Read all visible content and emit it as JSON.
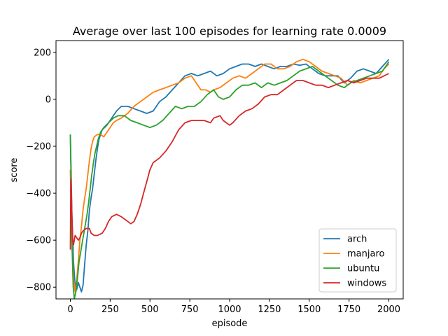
{
  "chart_data": {
    "type": "line",
    "title": "Average over last 100 episodes for learning rate 0.0009",
    "xlabel": "episode",
    "ylabel": "score",
    "xlim": [
      -90,
      2090
    ],
    "ylim": [
      -850,
      250
    ],
    "xticks": [
      0,
      250,
      500,
      750,
      1000,
      1250,
      1500,
      1750,
      2000
    ],
    "yticks": [
      -800,
      -600,
      -400,
      -200,
      0,
      200
    ],
    "grid": false,
    "legend_position": "lower-right",
    "series": [
      {
        "name": "arch",
        "color": "#1f77b4",
        "points": [
          [
            0,
            -150
          ],
          [
            5,
            -310
          ],
          [
            10,
            -500
          ],
          [
            20,
            -690
          ],
          [
            30,
            -790
          ],
          [
            40,
            -810
          ],
          [
            50,
            -780
          ],
          [
            60,
            -800
          ],
          [
            70,
            -820
          ],
          [
            80,
            -790
          ],
          [
            90,
            -700
          ],
          [
            100,
            -620
          ],
          [
            110,
            -560
          ],
          [
            120,
            -470
          ],
          [
            130,
            -420
          ],
          [
            140,
            -380
          ],
          [
            150,
            -320
          ],
          [
            160,
            -260
          ],
          [
            170,
            -210
          ],
          [
            180,
            -170
          ],
          [
            200,
            -130
          ],
          [
            230,
            -110
          ],
          [
            260,
            -80
          ],
          [
            290,
            -50
          ],
          [
            320,
            -30
          ],
          [
            360,
            -30
          ],
          [
            400,
            -40
          ],
          [
            440,
            -50
          ],
          [
            480,
            -60
          ],
          [
            520,
            -50
          ],
          [
            560,
            -10
          ],
          [
            600,
            10
          ],
          [
            640,
            40
          ],
          [
            680,
            70
          ],
          [
            720,
            100
          ],
          [
            760,
            110
          ],
          [
            800,
            100
          ],
          [
            840,
            110
          ],
          [
            880,
            120
          ],
          [
            920,
            100
          ],
          [
            960,
            110
          ],
          [
            1000,
            130
          ],
          [
            1040,
            140
          ],
          [
            1080,
            150
          ],
          [
            1120,
            150
          ],
          [
            1160,
            140
          ],
          [
            1200,
            150
          ],
          [
            1240,
            140
          ],
          [
            1280,
            130
          ],
          [
            1320,
            140
          ],
          [
            1360,
            140
          ],
          [
            1400,
            150
          ],
          [
            1440,
            145
          ],
          [
            1480,
            150
          ],
          [
            1520,
            130
          ],
          [
            1560,
            110
          ],
          [
            1600,
            100
          ],
          [
            1640,
            100
          ],
          [
            1680,
            100
          ],
          [
            1720,
            70
          ],
          [
            1760,
            90
          ],
          [
            1800,
            120
          ],
          [
            1840,
            130
          ],
          [
            1880,
            120
          ],
          [
            1920,
            110
          ],
          [
            1960,
            140
          ],
          [
            2000,
            170
          ]
        ]
      },
      {
        "name": "manjaro",
        "color": "#ff7f0e",
        "points": [
          [
            0,
            -300
          ],
          [
            5,
            -470
          ],
          [
            10,
            -620
          ],
          [
            20,
            -760
          ],
          [
            30,
            -820
          ],
          [
            40,
            -770
          ],
          [
            50,
            -690
          ],
          [
            60,
            -600
          ],
          [
            70,
            -540
          ],
          [
            80,
            -470
          ],
          [
            90,
            -420
          ],
          [
            100,
            -380
          ],
          [
            110,
            -320
          ],
          [
            120,
            -260
          ],
          [
            130,
            -210
          ],
          [
            140,
            -180
          ],
          [
            150,
            -160
          ],
          [
            170,
            -150
          ],
          [
            190,
            -150
          ],
          [
            210,
            -160
          ],
          [
            230,
            -140
          ],
          [
            250,
            -120
          ],
          [
            270,
            -100
          ],
          [
            290,
            -90
          ],
          [
            320,
            -80
          ],
          [
            360,
            -60
          ],
          [
            400,
            -30
          ],
          [
            440,
            -10
          ],
          [
            480,
            10
          ],
          [
            520,
            30
          ],
          [
            560,
            40
          ],
          [
            600,
            50
          ],
          [
            640,
            60
          ],
          [
            680,
            70
          ],
          [
            720,
            90
          ],
          [
            760,
            100
          ],
          [
            790,
            70
          ],
          [
            820,
            40
          ],
          [
            850,
            40
          ],
          [
            880,
            30
          ],
          [
            900,
            40
          ],
          [
            940,
            50
          ],
          [
            980,
            70
          ],
          [
            1020,
            90
          ],
          [
            1060,
            100
          ],
          [
            1100,
            90
          ],
          [
            1140,
            110
          ],
          [
            1180,
            130
          ],
          [
            1220,
            150
          ],
          [
            1260,
            150
          ],
          [
            1300,
            130
          ],
          [
            1340,
            130
          ],
          [
            1380,
            140
          ],
          [
            1420,
            160
          ],
          [
            1460,
            170
          ],
          [
            1500,
            160
          ],
          [
            1540,
            140
          ],
          [
            1580,
            120
          ],
          [
            1620,
            110
          ],
          [
            1660,
            100
          ],
          [
            1700,
            90
          ],
          [
            1740,
            60
          ],
          [
            1780,
            80
          ],
          [
            1820,
            70
          ],
          [
            1860,
            80
          ],
          [
            1900,
            90
          ],
          [
            1940,
            100
          ],
          [
            1970,
            130
          ],
          [
            2000,
            150
          ]
        ]
      },
      {
        "name": "ubuntu",
        "color": "#2ca02c",
        "points": [
          [
            0,
            -150
          ],
          [
            5,
            -360
          ],
          [
            10,
            -610
          ],
          [
            18,
            -800
          ],
          [
            25,
            -850
          ],
          [
            35,
            -820
          ],
          [
            45,
            -760
          ],
          [
            55,
            -690
          ],
          [
            65,
            -650
          ],
          [
            75,
            -610
          ],
          [
            85,
            -570
          ],
          [
            95,
            -530
          ],
          [
            105,
            -490
          ],
          [
            115,
            -440
          ],
          [
            125,
            -380
          ],
          [
            135,
            -320
          ],
          [
            145,
            -270
          ],
          [
            155,
            -230
          ],
          [
            165,
            -200
          ],
          [
            175,
            -170
          ],
          [
            190,
            -140
          ],
          [
            210,
            -120
          ],
          [
            240,
            -100
          ],
          [
            270,
            -80
          ],
          [
            300,
            -70
          ],
          [
            340,
            -70
          ],
          [
            380,
            -90
          ],
          [
            420,
            -100
          ],
          [
            460,
            -110
          ],
          [
            500,
            -120
          ],
          [
            540,
            -110
          ],
          [
            580,
            -90
          ],
          [
            620,
            -60
          ],
          [
            660,
            -30
          ],
          [
            700,
            -40
          ],
          [
            740,
            -30
          ],
          [
            780,
            -30
          ],
          [
            820,
            -10
          ],
          [
            860,
            20
          ],
          [
            900,
            40
          ],
          [
            930,
            10
          ],
          [
            960,
            0
          ],
          [
            1000,
            10
          ],
          [
            1040,
            40
          ],
          [
            1080,
            60
          ],
          [
            1120,
            60
          ],
          [
            1160,
            70
          ],
          [
            1200,
            50
          ],
          [
            1240,
            70
          ],
          [
            1280,
            60
          ],
          [
            1320,
            70
          ],
          [
            1360,
            80
          ],
          [
            1400,
            100
          ],
          [
            1440,
            120
          ],
          [
            1480,
            130
          ],
          [
            1520,
            140
          ],
          [
            1560,
            120
          ],
          [
            1600,
            100
          ],
          [
            1640,
            80
          ],
          [
            1680,
            60
          ],
          [
            1720,
            50
          ],
          [
            1760,
            70
          ],
          [
            1800,
            80
          ],
          [
            1840,
            90
          ],
          [
            1880,
            100
          ],
          [
            1920,
            110
          ],
          [
            1960,
            120
          ],
          [
            2000,
            160
          ]
        ]
      },
      {
        "name": "windows",
        "color": "#d62728",
        "points": [
          [
            0,
            -640
          ],
          [
            3,
            -340
          ],
          [
            6,
            -380
          ],
          [
            10,
            -500
          ],
          [
            15,
            -600
          ],
          [
            20,
            -620
          ],
          [
            30,
            -580
          ],
          [
            40,
            -590
          ],
          [
            50,
            -600
          ],
          [
            60,
            -590
          ],
          [
            70,
            -570
          ],
          [
            80,
            -560
          ],
          [
            100,
            -550
          ],
          [
            120,
            -550
          ],
          [
            130,
            -570
          ],
          [
            150,
            -580
          ],
          [
            170,
            -580
          ],
          [
            200,
            -570
          ],
          [
            220,
            -550
          ],
          [
            240,
            -520
          ],
          [
            260,
            -500
          ],
          [
            290,
            -490
          ],
          [
            320,
            -500
          ],
          [
            340,
            -510
          ],
          [
            360,
            -520
          ],
          [
            380,
            -530
          ],
          [
            400,
            -520
          ],
          [
            420,
            -490
          ],
          [
            440,
            -450
          ],
          [
            460,
            -400
          ],
          [
            480,
            -350
          ],
          [
            500,
            -300
          ],
          [
            520,
            -270
          ],
          [
            560,
            -250
          ],
          [
            600,
            -220
          ],
          [
            640,
            -180
          ],
          [
            680,
            -130
          ],
          [
            720,
            -100
          ],
          [
            760,
            -90
          ],
          [
            800,
            -90
          ],
          [
            840,
            -90
          ],
          [
            880,
            -100
          ],
          [
            900,
            -80
          ],
          [
            940,
            -70
          ],
          [
            960,
            -90
          ],
          [
            1000,
            -110
          ],
          [
            1020,
            -100
          ],
          [
            1060,
            -70
          ],
          [
            1100,
            -50
          ],
          [
            1140,
            -40
          ],
          [
            1180,
            -20
          ],
          [
            1220,
            10
          ],
          [
            1260,
            20
          ],
          [
            1300,
            20
          ],
          [
            1340,
            40
          ],
          [
            1380,
            60
          ],
          [
            1420,
            80
          ],
          [
            1460,
            80
          ],
          [
            1500,
            70
          ],
          [
            1540,
            60
          ],
          [
            1580,
            60
          ],
          [
            1620,
            50
          ],
          [
            1660,
            60
          ],
          [
            1700,
            70
          ],
          [
            1740,
            80
          ],
          [
            1780,
            70
          ],
          [
            1820,
            80
          ],
          [
            1860,
            90
          ],
          [
            1900,
            90
          ],
          [
            1940,
            90
          ],
          [
            1970,
            100
          ],
          [
            2000,
            110
          ]
        ]
      }
    ]
  }
}
